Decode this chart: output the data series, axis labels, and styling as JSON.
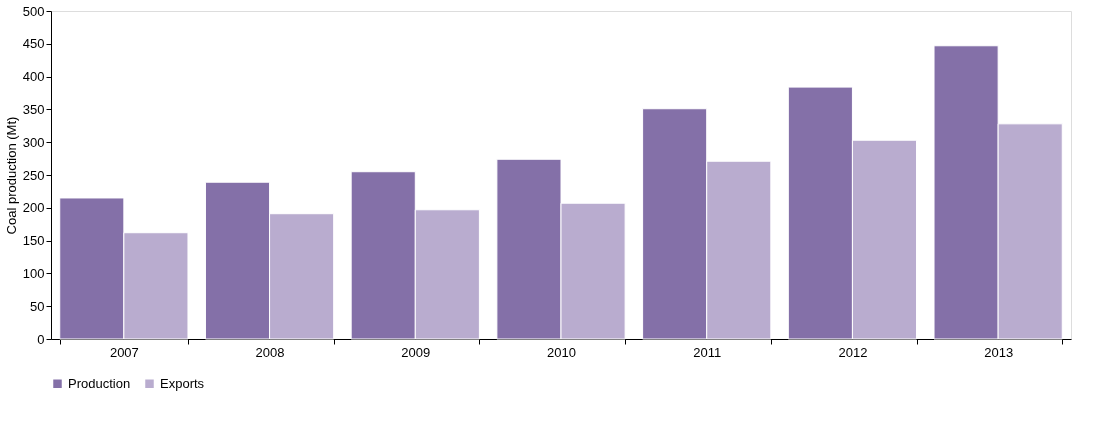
{
  "chart_data": {
    "type": "bar",
    "ylabel": "Coal production (Mt)",
    "categories": [
      "2007",
      "2008",
      "2009",
      "2010",
      "2011",
      "2012",
      "2013"
    ],
    "series": [
      {
        "name": "Production",
        "color": "#8470a8",
        "values": [
          215,
          239,
          255,
          274,
          351,
          384,
          447
        ]
      },
      {
        "name": "Exports",
        "color": "#b9accf",
        "values": [
          162,
          191,
          197,
          207,
          271,
          303,
          328
        ]
      }
    ],
    "ylim": [
      0,
      500
    ],
    "yticks": [
      0,
      50,
      100,
      150,
      200,
      250,
      300,
      350,
      400,
      450,
      500
    ],
    "grid": false,
    "legend": "bottom"
  }
}
